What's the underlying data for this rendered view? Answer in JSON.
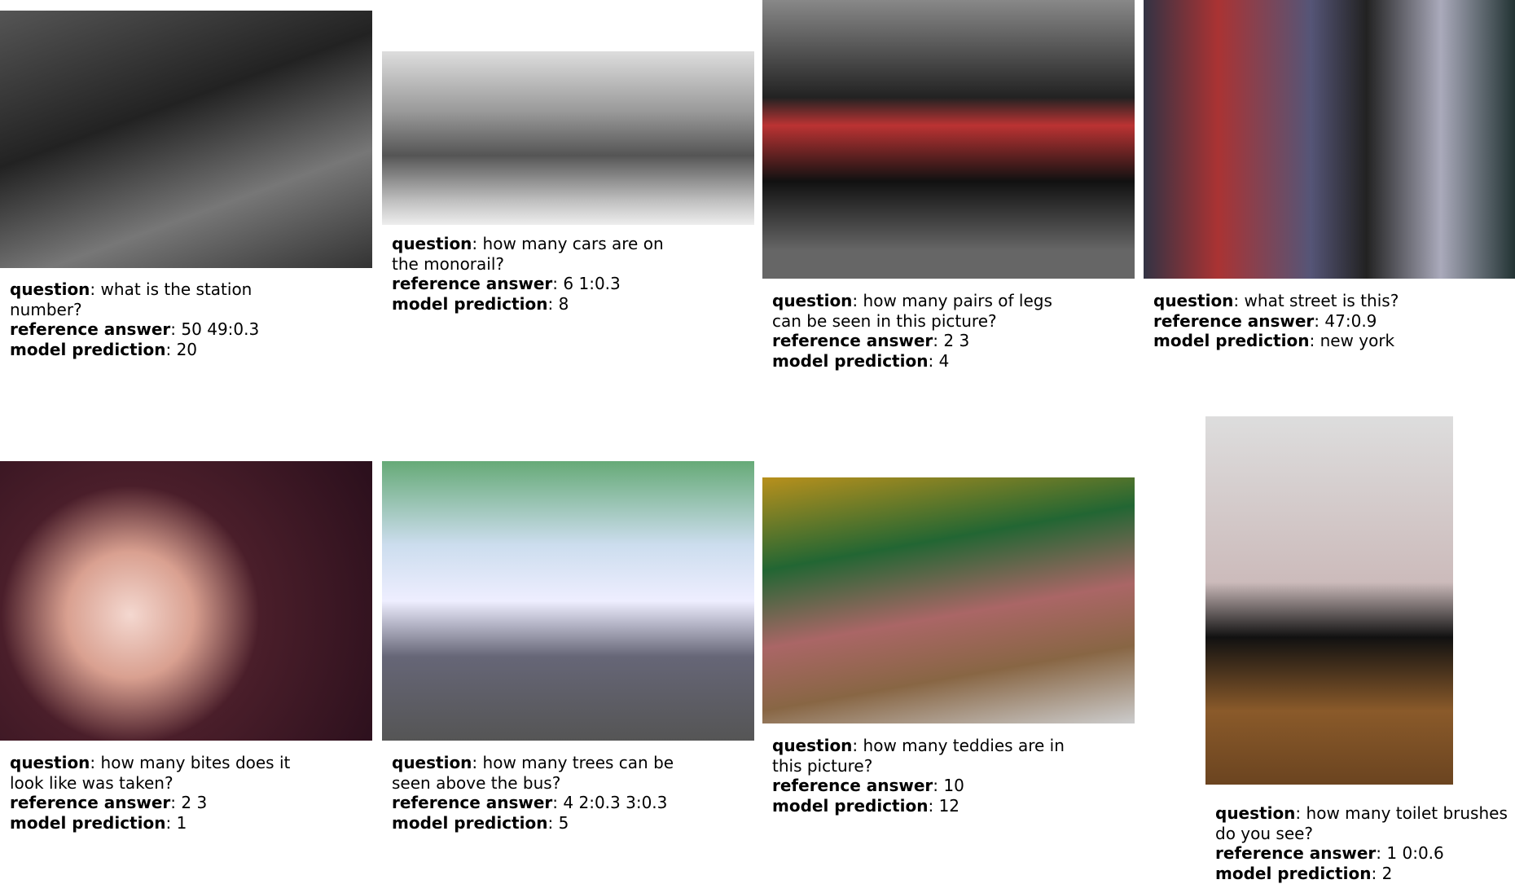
{
  "labels": {
    "question": "question",
    "reference": "reference answer",
    "prediction": "model prediction",
    "separator": ": "
  },
  "items": [
    {
      "question": "what is the station number?",
      "reference_answer": "50 49:0.3",
      "model_prediction": "20"
    },
    {
      "question": "how many cars are on the monorail?",
      "reference_answer": "6 1:0.3",
      "model_prediction": "8"
    },
    {
      "question": "how many pairs of legs can be seen in this picture?",
      "reference_answer": "2 3",
      "model_prediction": "4"
    },
    {
      "question": "what street is this?",
      "reference_answer": "47:0.9",
      "model_prediction": "new york"
    },
    {
      "question": "how many bites does it look like was taken?",
      "reference_answer": "2 3",
      "model_prediction": "1"
    },
    {
      "question": "how many trees can be seen above the bus?",
      "reference_answer": "4 2:0.3 3:0.3",
      "model_prediction": "5"
    },
    {
      "question": "how many teddies are in this picture?",
      "reference_answer": "10",
      "model_prediction": "12"
    },
    {
      "question": "how many toilet brushes do you see?",
      "reference_answer": "1 0:0.6",
      "model_prediction": "2"
    }
  ]
}
